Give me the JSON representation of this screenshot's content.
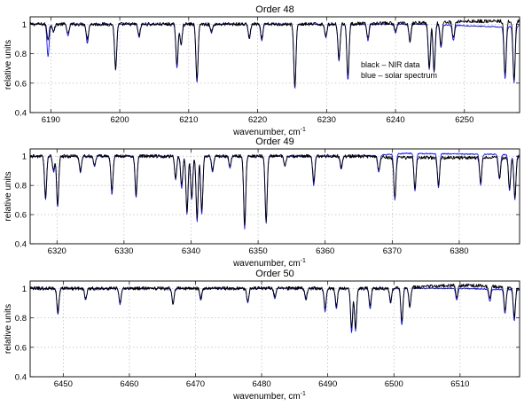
{
  "colors": {
    "nir": "#000000",
    "solar": "#1414e6",
    "grid": "#b0b0b0"
  },
  "chart_data": [
    {
      "type": "line",
      "title": "Order 48",
      "xlabel": "wavenumber, cm",
      "xlabel_sup": "-1",
      "ylabel": "relative units",
      "xlim": [
        6187,
        6258
      ],
      "ylim": [
        0.4,
        1.05
      ],
      "xticks": [
        6190,
        6200,
        6210,
        6220,
        6230,
        6240,
        6250
      ],
      "yticks": [
        0.4,
        0.6,
        0.8,
        1
      ],
      "ytick_labels": [
        "0.4",
        "0.6",
        "0.8",
        "1"
      ],
      "grid": true,
      "legend": {
        "placement": "inside-right",
        "entries": [
          "black – NIR data",
          "blue – solar spectrum"
        ]
      },
      "continuum": [
        [
          6187,
          1.0
        ],
        [
          6230,
          1.0
        ],
        [
          6245,
          1.01
        ],
        [
          6250,
          1.02
        ],
        [
          6258,
          1.02
        ]
      ],
      "solar_continuum": [
        [
          6187,
          1.0
        ],
        [
          6245,
          1.0
        ],
        [
          6250,
          0.99
        ],
        [
          6256,
          0.98
        ],
        [
          6258,
          0.99
        ]
      ],
      "series": [
        {
          "name": "black – NIR data",
          "color_key": "nir",
          "lines": [
            [
              6189.6,
              0.9
            ],
            [
              6190.4,
              0.95
            ],
            [
              6192.5,
              0.93
            ],
            [
              6195.3,
              0.9
            ],
            [
              6199.4,
              0.7
            ],
            [
              6202.8,
              0.92
            ],
            [
              6208.3,
              0.72
            ],
            [
              6208.9,
              0.87
            ],
            [
              6211.2,
              0.62
            ],
            [
              6213.3,
              0.95
            ],
            [
              6218.8,
              0.91
            ],
            [
              6220.6,
              0.9
            ],
            [
              6225.4,
              0.58
            ],
            [
              6229.9,
              0.92
            ],
            [
              6231.8,
              0.77
            ],
            [
              6233.1,
              0.65
            ],
            [
              6236.0,
              0.9
            ],
            [
              6240.0,
              0.95
            ],
            [
              6242.1,
              0.89
            ],
            [
              6244.9,
              0.71
            ],
            [
              6245.6,
              0.69
            ],
            [
              6246.6,
              0.86
            ],
            [
              6248.4,
              0.9
            ],
            [
              6255.9,
              0.65
            ],
            [
              6257.2,
              0.62
            ]
          ]
        },
        {
          "name": "blue – solar spectrum",
          "color_key": "solar",
          "lines": [
            [
              6189.6,
              0.78
            ],
            [
              6190.4,
              0.95
            ],
            [
              6192.5,
              0.92
            ],
            [
              6195.3,
              0.87
            ],
            [
              6199.4,
              0.69
            ],
            [
              6202.8,
              0.91
            ],
            [
              6208.3,
              0.7
            ],
            [
              6208.9,
              0.86
            ],
            [
              6211.2,
              0.6
            ],
            [
              6213.3,
              0.94
            ],
            [
              6218.8,
              0.9
            ],
            [
              6220.6,
              0.89
            ],
            [
              6225.4,
              0.56
            ],
            [
              6229.9,
              0.91
            ],
            [
              6231.8,
              0.75
            ],
            [
              6233.1,
              0.62
            ],
            [
              6236.0,
              0.89
            ],
            [
              6240.0,
              0.94
            ],
            [
              6242.1,
              0.88
            ],
            [
              6244.9,
              0.69
            ],
            [
              6245.6,
              0.67
            ],
            [
              6246.6,
              0.84
            ],
            [
              6248.4,
              0.89
            ],
            [
              6255.9,
              0.63
            ],
            [
              6257.2,
              0.6
            ]
          ]
        }
      ]
    },
    {
      "type": "line",
      "title": "Order 49",
      "xlabel": "wavenumber, cm",
      "xlabel_sup": "-1",
      "ylabel": "relative units",
      "xlim": [
        6316,
        6389
      ],
      "ylim": [
        0.4,
        1.05
      ],
      "xticks": [
        6320,
        6330,
        6340,
        6350,
        6360,
        6370,
        6380
      ],
      "yticks": [
        0.4,
        0.6,
        0.8,
        1
      ],
      "ytick_labels": [
        "0.4",
        "0.6",
        "0.8",
        "1"
      ],
      "grid": true,
      "continuum": [
        [
          6316,
          1.0
        ],
        [
          6366,
          1.0
        ],
        [
          6370,
          0.99
        ],
        [
          6389,
          0.99
        ]
      ],
      "solar_continuum": [
        [
          6316,
          1.0
        ],
        [
          6366,
          1.0
        ],
        [
          6372,
          1.02
        ],
        [
          6389,
          1.01
        ]
      ],
      "series": [
        {
          "name": "black – NIR data",
          "color_key": "nir",
          "lines": [
            [
              6318.3,
              0.72
            ],
            [
              6319.5,
              0.9
            ],
            [
              6320.1,
              0.67
            ],
            [
              6323.5,
              0.9
            ],
            [
              6325.6,
              0.94
            ],
            [
              6328.2,
              0.76
            ],
            [
              6331.8,
              0.74
            ],
            [
              6337.7,
              0.85
            ],
            [
              6338.6,
              0.8
            ],
            [
              6339.4,
              0.62
            ],
            [
              6340.1,
              0.72
            ],
            [
              6340.9,
              0.58
            ],
            [
              6341.6,
              0.62
            ],
            [
              6343.2,
              0.9
            ],
            [
              6345.8,
              0.93
            ],
            [
              6348.0,
              0.52
            ],
            [
              6351.2,
              0.56
            ],
            [
              6354.0,
              0.94
            ],
            [
              6358.3,
              0.82
            ],
            [
              6362.4,
              0.92
            ],
            [
              6368.0,
              0.9
            ],
            [
              6370.4,
              0.72
            ],
            [
              6373.4,
              0.78
            ],
            [
              6376.9,
              0.8
            ],
            [
              6383.2,
              0.82
            ],
            [
              6386.0,
              0.85
            ],
            [
              6387.5,
              0.78
            ],
            [
              6388.3,
              0.72
            ]
          ]
        },
        {
          "name": "blue – solar spectrum",
          "color_key": "solar",
          "lines": [
            [
              6318.3,
              0.7
            ],
            [
              6319.5,
              0.89
            ],
            [
              6320.1,
              0.65
            ],
            [
              6323.5,
              0.89
            ],
            [
              6325.6,
              0.93
            ],
            [
              6328.2,
              0.74
            ],
            [
              6331.8,
              0.72
            ],
            [
              6337.7,
              0.84
            ],
            [
              6338.6,
              0.78
            ],
            [
              6339.4,
              0.6
            ],
            [
              6340.1,
              0.7
            ],
            [
              6340.9,
              0.55
            ],
            [
              6341.6,
              0.6
            ],
            [
              6343.2,
              0.89
            ],
            [
              6345.8,
              0.92
            ],
            [
              6348.0,
              0.5
            ],
            [
              6351.2,
              0.54
            ],
            [
              6354.0,
              0.93
            ],
            [
              6358.3,
              0.8
            ],
            [
              6362.4,
              0.91
            ],
            [
              6368.0,
              0.89
            ],
            [
              6370.4,
              0.7
            ],
            [
              6373.4,
              0.76
            ],
            [
              6376.9,
              0.78
            ],
            [
              6383.2,
              0.8
            ],
            [
              6386.0,
              0.84
            ],
            [
              6387.5,
              0.76
            ],
            [
              6388.3,
              0.7
            ]
          ]
        }
      ]
    },
    {
      "type": "line",
      "title": "Order 50",
      "xlabel": "wavenumber, cm",
      "xlabel_sup": "-1",
      "ylabel": "relative units",
      "xlim": [
        6445,
        6519
      ],
      "ylim": [
        0.4,
        1.05
      ],
      "xticks": [
        6450,
        6460,
        6470,
        6480,
        6490,
        6500,
        6510
      ],
      "yticks": [
        0.4,
        0.6,
        0.8,
        1
      ],
      "ytick_labels": [
        "0.4",
        "0.6",
        "0.8",
        "1"
      ],
      "grid": true,
      "continuum": [
        [
          6445,
          1.0
        ],
        [
          6500,
          1.0
        ],
        [
          6508,
          1.02
        ],
        [
          6512,
          1.02
        ],
        [
          6519,
          1.0
        ]
      ],
      "solar_continuum": [
        [
          6445,
          1.0
        ],
        [
          6510,
          1.0
        ],
        [
          6519,
          0.99
        ]
      ],
      "series": [
        {
          "name": "black – NIR data",
          "color_key": "nir",
          "lines": [
            [
              6449.2,
              0.84
            ],
            [
              6453.4,
              0.93
            ],
            [
              6458.6,
              0.9
            ],
            [
              6466.6,
              0.9
            ],
            [
              6470.8,
              0.93
            ],
            [
              6477.9,
              0.91
            ],
            [
              6482.0,
              0.94
            ],
            [
              6486.7,
              0.93
            ],
            [
              6489.6,
              0.86
            ],
            [
              6491.3,
              0.88
            ],
            [
              6493.6,
              0.72
            ],
            [
              6494.2,
              0.73
            ],
            [
              6496.4,
              0.88
            ],
            [
              6499.5,
              0.91
            ],
            [
              6501.2,
              0.77
            ],
            [
              6502.4,
              0.88
            ],
            [
              6509.5,
              0.93
            ],
            [
              6514.5,
              0.93
            ],
            [
              6516.8,
              0.85
            ],
            [
              6518.2,
              0.8
            ]
          ]
        },
        {
          "name": "blue – solar spectrum",
          "color_key": "solar",
          "lines": [
            [
              6449.2,
              0.82
            ],
            [
              6453.4,
              0.92
            ],
            [
              6458.6,
              0.89
            ],
            [
              6466.6,
              0.89
            ],
            [
              6470.8,
              0.92
            ],
            [
              6477.9,
              0.9
            ],
            [
              6482.0,
              0.93
            ],
            [
              6486.7,
              0.92
            ],
            [
              6489.6,
              0.84
            ],
            [
              6491.3,
              0.86
            ],
            [
              6493.6,
              0.7
            ],
            [
              6494.2,
              0.71
            ],
            [
              6496.4,
              0.86
            ],
            [
              6499.5,
              0.9
            ],
            [
              6501.2,
              0.75
            ],
            [
              6502.4,
              0.87
            ],
            [
              6509.5,
              0.92
            ],
            [
              6514.5,
              0.91
            ],
            [
              6516.8,
              0.83
            ],
            [
              6518.2,
              0.78
            ]
          ]
        }
      ]
    }
  ]
}
